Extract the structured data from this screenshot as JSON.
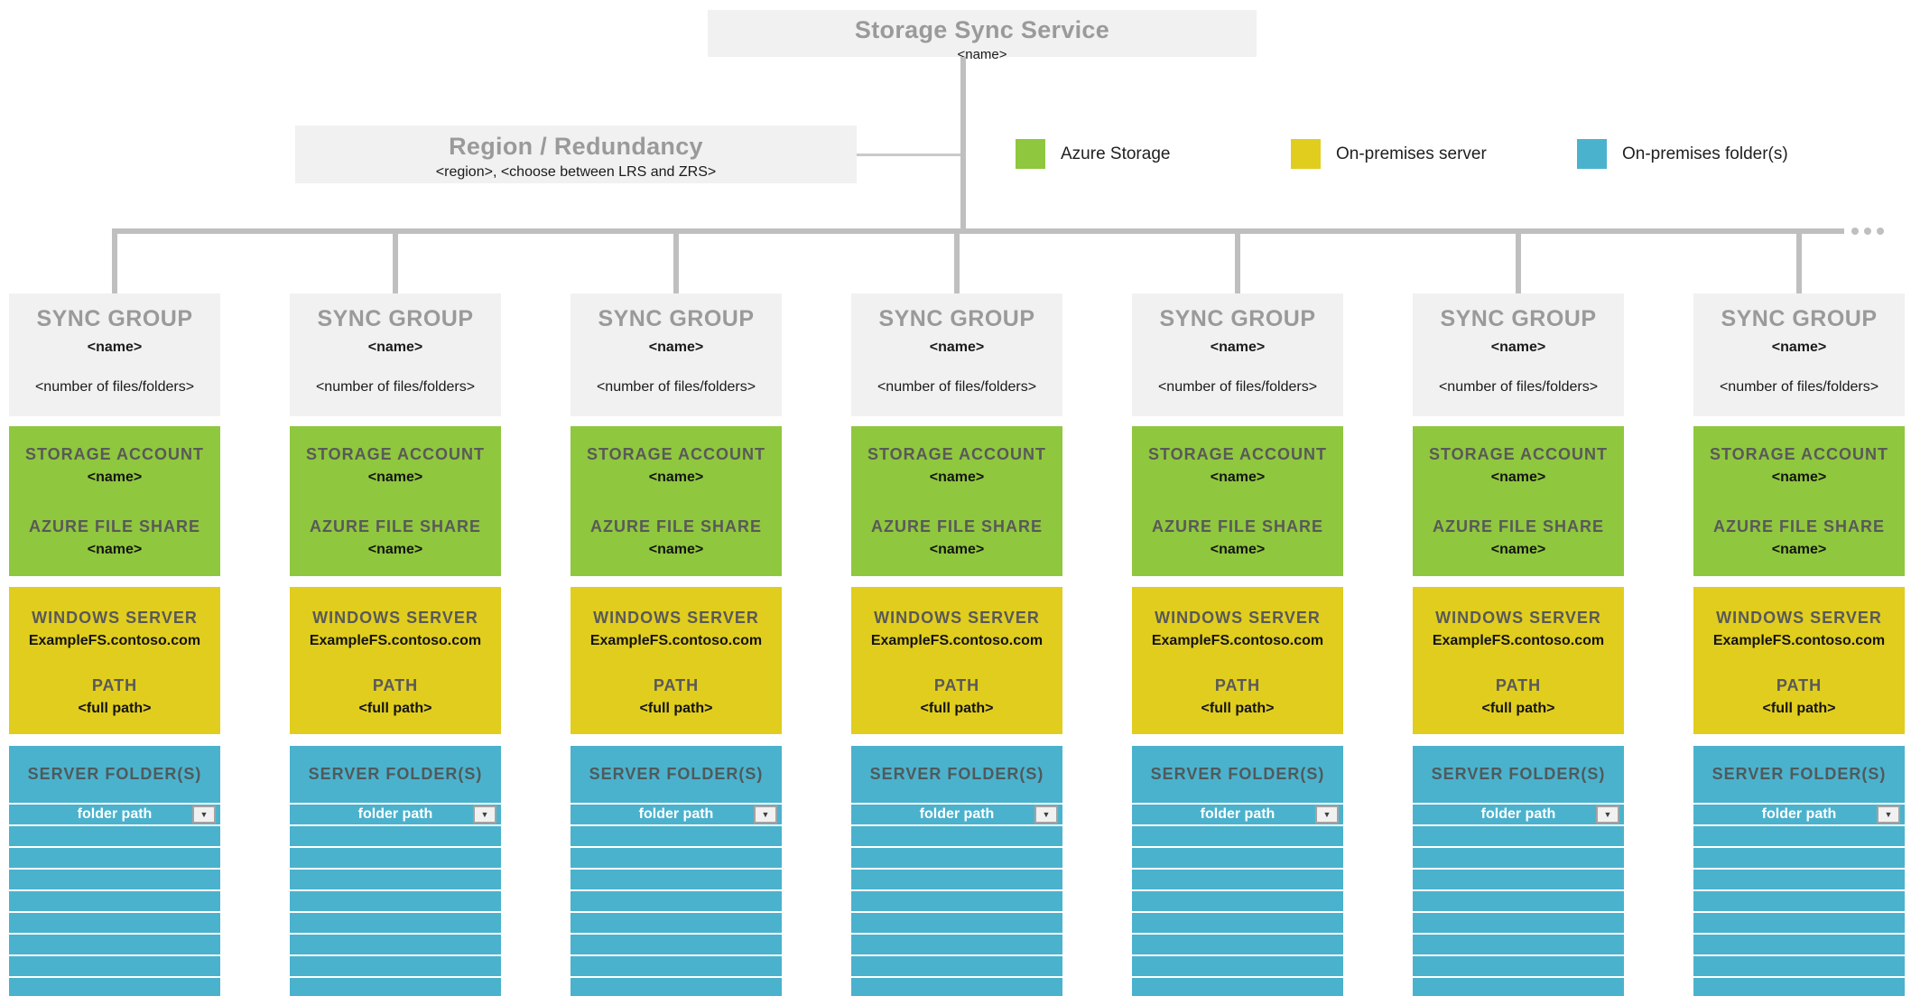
{
  "root_box": {
    "title": "Storage Sync Service",
    "name": "<name>"
  },
  "region_box": {
    "title": "Region / Redundancy",
    "details": "<region>, <choose between LRS and ZRS>"
  },
  "legend": [
    {
      "label": "Azure Storage",
      "color": "#8FC73E"
    },
    {
      "label": "On-premises server",
      "color": "#E1CD1E"
    },
    {
      "label": "On-premises folder(s)",
      "color": "#4BB2CD"
    }
  ],
  "connectors": {
    "color": "#BFBFBF",
    "more_groups_ellipsis_dots": 3
  },
  "sync_groups": {
    "count": 7,
    "template": {
      "header": {
        "title": "SYNC GROUP",
        "name": "<name>",
        "files_count": "<number of files/folders>"
      },
      "storage": {
        "account_label": "STORAGE ACCOUNT",
        "account_name": "<name>",
        "share_label": "AZURE FILE SHARE",
        "share_name": "<name>"
      },
      "server": {
        "label": "WINDOWS SERVER",
        "hostname": "ExampleFS.contoso.com",
        "path_label": "PATH",
        "path_value": "<full path>"
      },
      "folders": {
        "label": "SERVER FOLDER(S)",
        "selected_value": "folder path",
        "dropdown_icon": "▼",
        "empty_rows": 8
      }
    }
  },
  "colors": {
    "azure_storage_green": "#8FC73E",
    "on_prem_server_yellow": "#E1CD1E",
    "on_prem_folder_teal": "#4BB2CD",
    "panel_gray": "#F1F1F1",
    "heading_gray": "#9A9A9A",
    "subheading_gray": "#595959",
    "connector_gray": "#BFBFBF"
  }
}
